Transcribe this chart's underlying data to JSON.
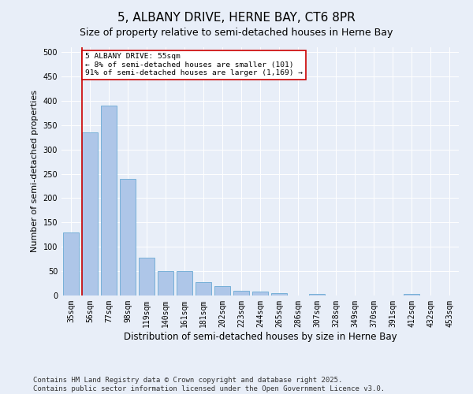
{
  "title": "5, ALBANY DRIVE, HERNE BAY, CT6 8PR",
  "subtitle": "Size of property relative to semi-detached houses in Herne Bay",
  "xlabel": "Distribution of semi-detached houses by size in Herne Bay",
  "ylabel": "Number of semi-detached properties",
  "categories": [
    "35sqm",
    "56sqm",
    "77sqm",
    "98sqm",
    "119sqm",
    "140sqm",
    "161sqm",
    "181sqm",
    "202sqm",
    "223sqm",
    "244sqm",
    "265sqm",
    "286sqm",
    "307sqm",
    "328sqm",
    "349sqm",
    "370sqm",
    "391sqm",
    "412sqm",
    "432sqm",
    "453sqm"
  ],
  "values": [
    130,
    335,
    390,
    240,
    77,
    51,
    51,
    27,
    19,
    10,
    8,
    5,
    0,
    3,
    0,
    0,
    0,
    0,
    3,
    0,
    0
  ],
  "bar_color": "#aec6e8",
  "bar_edge_color": "#6aaad4",
  "highlight_bar_index": 1,
  "highlight_edge_color": "#cc0000",
  "annotation_title": "5 ALBANY DRIVE: 55sqm",
  "annotation_line1": "← 8% of semi-detached houses are smaller (101)",
  "annotation_line2": "91% of semi-detached houses are larger (1,169) →",
  "annotation_box_color": "#ffffff",
  "annotation_edge_color": "#cc0000",
  "footer_line1": "Contains HM Land Registry data © Crown copyright and database right 2025.",
  "footer_line2": "Contains public sector information licensed under the Open Government Licence v3.0.",
  "ylim": [
    0,
    510
  ],
  "yticks": [
    0,
    50,
    100,
    150,
    200,
    250,
    300,
    350,
    400,
    450,
    500
  ],
  "title_fontsize": 11,
  "xlabel_fontsize": 8.5,
  "ylabel_fontsize": 8,
  "tick_fontsize": 7,
  "footer_fontsize": 6.5,
  "background_color": "#e8eef8",
  "plot_bg_color": "#e8eef8"
}
